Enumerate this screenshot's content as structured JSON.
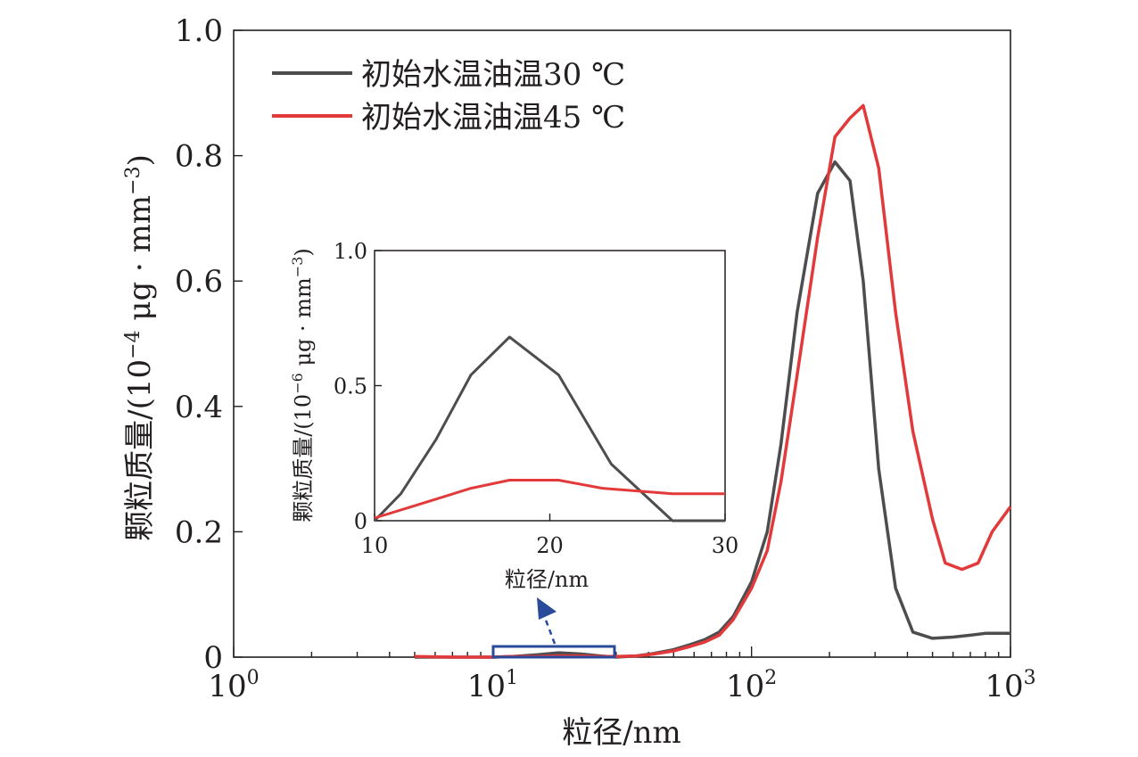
{
  "chart_data": [
    {
      "type": "line",
      "xlabel": "粒径/nm",
      "ylabel_main": "颗粒质量/(10",
      "ylabel_exp": "−4",
      "ylabel_unit": " μg · mm",
      "ylabel_unit_exp": "−3",
      "ylabel_close": ")",
      "x_scale": "log",
      "xlim": [
        1,
        1000
      ],
      "ylim": [
        0,
        1.0
      ],
      "x_ticks": [
        {
          "base": "10",
          "exp": "0"
        },
        {
          "base": "10",
          "exp": "1"
        },
        {
          "base": "10",
          "exp": "2"
        },
        {
          "base": "10",
          "exp": "3"
        }
      ],
      "y_ticks": [
        "0",
        "0.2",
        "0.4",
        "0.6",
        "0.8",
        "1.0"
      ],
      "legend_position": "top-left",
      "series": [
        {
          "name": "初始水温油温30 ℃",
          "color": "#4d4d4f",
          "x": [
            5,
            7,
            10,
            12,
            15,
            18,
            22,
            26,
            30,
            36,
            42,
            50,
            58,
            66,
            75,
            85,
            100,
            115,
            130,
            150,
            180,
            210,
            240,
            270,
            310,
            360,
            420,
            500,
            600,
            700,
            800,
            1000
          ],
          "y": [
            0,
            0,
            0,
            0.001,
            0.004,
            0.007,
            0.005,
            0.002,
            0,
            0.002,
            0.006,
            0.012,
            0.02,
            0.028,
            0.04,
            0.065,
            0.12,
            0.2,
            0.34,
            0.55,
            0.74,
            0.79,
            0.76,
            0.6,
            0.3,
            0.11,
            0.04,
            0.03,
            0.032,
            0.035,
            0.038,
            0.038
          ]
        },
        {
          "name": "初始水温油温45 ℃",
          "color": "#e23a3b",
          "x": [
            5,
            7,
            10,
            12,
            15,
            18,
            22,
            26,
            30,
            36,
            42,
            50,
            58,
            66,
            75,
            85,
            100,
            115,
            130,
            150,
            180,
            210,
            240,
            270,
            310,
            360,
            420,
            500,
            560,
            650,
            750,
            850,
            1000
          ],
          "y": [
            0.001,
            0,
            0,
            0.001,
            0.001,
            0.002,
            0.002,
            0.001,
            0.001,
            0.002,
            0.005,
            0.01,
            0.017,
            0.024,
            0.035,
            0.06,
            0.11,
            0.17,
            0.28,
            0.45,
            0.67,
            0.83,
            0.86,
            0.88,
            0.78,
            0.55,
            0.36,
            0.22,
            0.15,
            0.14,
            0.15,
            0.2,
            0.24
          ]
        }
      ]
    },
    {
      "type": "line",
      "role": "inset",
      "xlabel": "粒径/nm",
      "ylabel_main": "颗粒质量/(10",
      "ylabel_exp": "−6",
      "ylabel_unit": " μg · mm",
      "ylabel_unit_exp": "−3",
      "ylabel_close": ")",
      "xlim": [
        10,
        30
      ],
      "ylim": [
        0,
        1.0
      ],
      "x_ticks": [
        "10",
        "20",
        "30"
      ],
      "y_ticks": [
        "0",
        "0.5",
        "1.0"
      ],
      "series": [
        {
          "name": "初始水温油温30 ℃",
          "color": "#4d4d4f",
          "x": [
            10,
            11.5,
            13.5,
            15.5,
            17.7,
            20.5,
            23.5,
            27,
            30
          ],
          "y": [
            0,
            0.1,
            0.3,
            0.54,
            0.68,
            0.54,
            0.21,
            0,
            0
          ]
        },
        {
          "name": "初始水温油温45 ℃",
          "color": "#e23a3b",
          "x": [
            10,
            12,
            15.5,
            17.7,
            20.5,
            23,
            27,
            30
          ],
          "y": [
            0.01,
            0.05,
            0.12,
            0.15,
            0.15,
            0.12,
            0.1,
            0.1
          ]
        }
      ]
    }
  ],
  "highlight": {
    "color": "#2a4a9a"
  }
}
